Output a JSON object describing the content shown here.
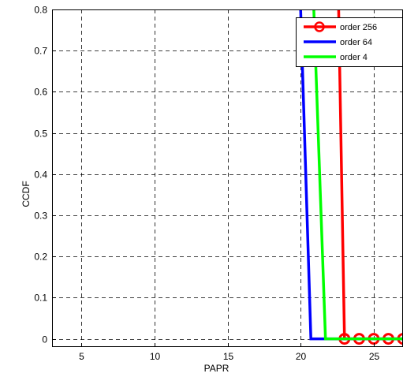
{
  "chart_data": {
    "type": "line",
    "title": "",
    "xlabel": "PAPR",
    "ylabel": "CCDF",
    "xlim": [
      3,
      27
    ],
    "ylim": [
      -0.02,
      0.8
    ],
    "xticks": [
      5,
      10,
      15,
      20,
      25
    ],
    "yticks": [
      0,
      0.1,
      0.2,
      0.3,
      0.4,
      0.5,
      0.6,
      0.7,
      0.8
    ],
    "grid": true,
    "legend_position": "top-right",
    "series": [
      {
        "name": "order 256",
        "color": "#ff0000",
        "marker": "circle",
        "x": [
          22.6,
          23.0,
          24.0,
          25.0,
          26.0,
          27.0
        ],
        "y": [
          0.8,
          0.0,
          0.0,
          0.0,
          0.0,
          0.0
        ],
        "marker_x": [
          23,
          24,
          25,
          26,
          27
        ]
      },
      {
        "name": "order 64",
        "color": "#0000ff",
        "marker": "none",
        "x": [
          20.0,
          20.7,
          27.0
        ],
        "y": [
          0.8,
          0.0,
          0.0
        ]
      },
      {
        "name": "order 4",
        "color": "#00ff00",
        "marker": "none",
        "x": [
          20.9,
          21.7,
          27.0
        ],
        "y": [
          0.8,
          0.0,
          0.0
        ]
      }
    ]
  }
}
